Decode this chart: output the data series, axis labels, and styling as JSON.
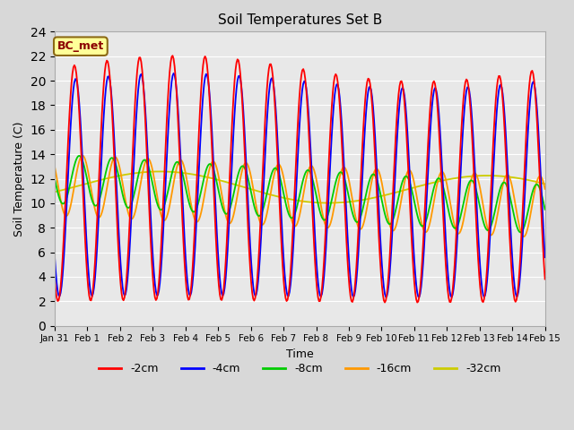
{
  "title": "Soil Temperatures Set B",
  "xlabel": "Time",
  "ylabel": "Soil Temperature (C)",
  "ylim": [
    0,
    24
  ],
  "yticks": [
    0,
    2,
    4,
    6,
    8,
    10,
    12,
    14,
    16,
    18,
    20,
    22,
    24
  ],
  "fig_bg_color": "#d8d8d8",
  "plot_bg_color": "#e8e8e8",
  "annotation_text": "BC_met",
  "annotation_color": "#8B0000",
  "annotation_bg": "#ffff99",
  "series_colors": [
    "#ff0000",
    "#0000ff",
    "#00cc00",
    "#ff9900",
    "#cccc00"
  ],
  "series_labels": [
    "-2cm",
    "-4cm",
    "-8cm",
    "-16cm",
    "-32cm"
  ],
  "grid_color": "#ffffff",
  "xtick_labels": [
    "Jan 31",
    "Feb 1",
    "Feb 2",
    "Feb 3",
    "Feb 4",
    "Feb 5",
    "Feb 6",
    "Feb 7",
    "Feb 8",
    "Feb 9",
    "Feb 10",
    "Feb 11",
    "Feb 12",
    "Feb 13",
    "Feb 14",
    "Feb 15"
  ],
  "n_points": 500
}
